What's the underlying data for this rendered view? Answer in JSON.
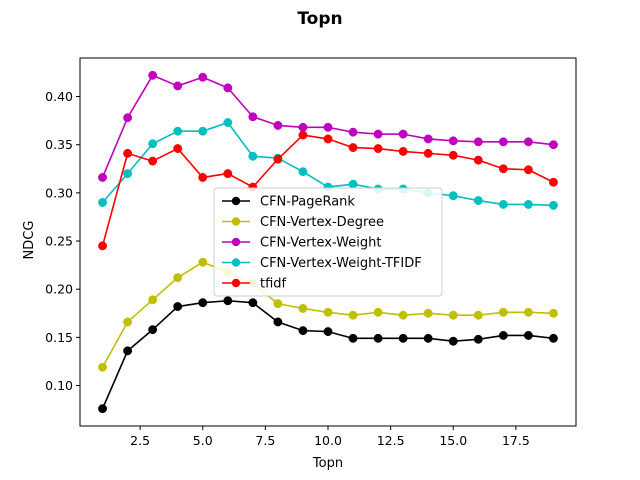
{
  "chart_data": {
    "type": "line",
    "title": "Topn",
    "xlabel": "Topn",
    "ylabel": "NDCG",
    "xlim": [
      0.1,
      19.9
    ],
    "ylim": [
      0.058,
      0.44
    ],
    "xticks": [
      2.5,
      5.0,
      7.5,
      10.0,
      12.5,
      15.0,
      17.5
    ],
    "xtick_labels": [
      "2.5",
      "5.0",
      "7.5",
      "10.0",
      "12.5",
      "15.0",
      "17.5"
    ],
    "yticks": [
      0.1,
      0.15,
      0.2,
      0.25,
      0.3,
      0.35,
      0.4
    ],
    "ytick_labels": [
      "0.10",
      "0.15",
      "0.20",
      "0.25",
      "0.30",
      "0.35",
      "0.40"
    ],
    "grid": false,
    "legend_position": "center",
    "x": [
      1,
      2,
      3,
      4,
      5,
      6,
      7,
      8,
      9,
      10,
      11,
      12,
      13,
      14,
      15,
      16,
      17,
      18,
      19
    ],
    "series": [
      {
        "name": "CFN-PageRank",
        "color": "#000000",
        "values": [
          0.076,
          0.136,
          0.158,
          0.182,
          0.186,
          0.188,
          0.186,
          0.166,
          0.157,
          0.156,
          0.149,
          0.149,
          0.149,
          0.149,
          0.146,
          0.148,
          0.152,
          0.152,
          0.149
        ]
      },
      {
        "name": "CFN-Vertex-Degree",
        "color": "#bfbf00",
        "values": [
          0.119,
          0.166,
          0.189,
          0.212,
          0.228,
          0.218,
          0.206,
          0.185,
          0.18,
          0.176,
          0.173,
          0.176,
          0.173,
          0.175,
          0.173,
          0.173,
          0.176,
          0.176,
          0.175
        ]
      },
      {
        "name": "CFN-Vertex-Weight",
        "color": "#bf00bf",
        "values": [
          0.316,
          0.378,
          0.422,
          0.411,
          0.42,
          0.409,
          0.379,
          0.37,
          0.368,
          0.368,
          0.363,
          0.361,
          0.361,
          0.356,
          0.354,
          0.353,
          0.353,
          0.353,
          0.35
        ]
      },
      {
        "name": "CFN-Vertex-Weight-TFIDF",
        "color": "#00bfbf",
        "values": [
          0.29,
          0.32,
          0.351,
          0.364,
          0.364,
          0.373,
          0.338,
          0.336,
          0.322,
          0.306,
          0.309,
          0.304,
          0.304,
          0.3,
          0.297,
          0.292,
          0.288,
          0.288,
          0.287
        ]
      },
      {
        "name": "tfidf",
        "color": "#ff0000",
        "values": [
          0.245,
          0.341,
          0.333,
          0.346,
          0.316,
          0.32,
          0.306,
          0.335,
          0.36,
          0.356,
          0.347,
          0.346,
          0.343,
          0.341,
          0.339,
          0.334,
          0.325,
          0.324,
          0.311
        ]
      }
    ]
  }
}
